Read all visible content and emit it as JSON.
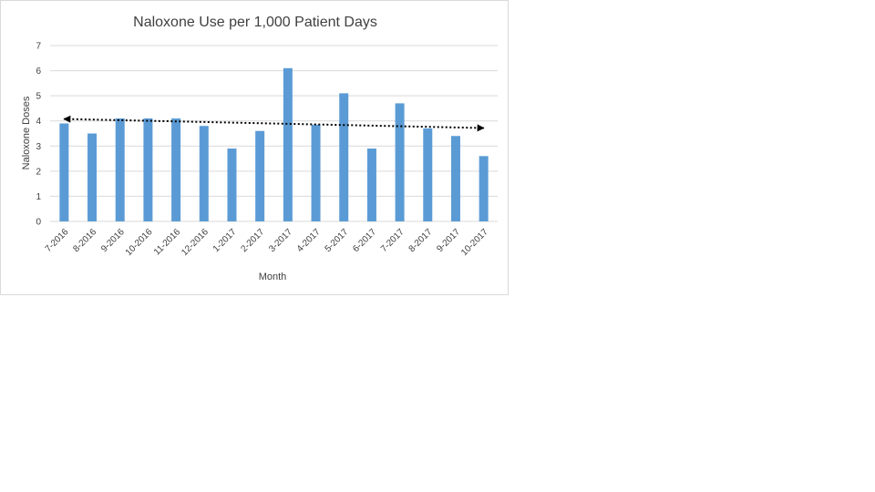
{
  "chart_data": {
    "type": "bar",
    "title": "Naloxone Use per 1,000 Patient Days",
    "xlabel": "Month",
    "ylabel": "Naloxone Doses",
    "categories": [
      "7-2016",
      "8-2016",
      "9-2016",
      "10-2016",
      "11-2016",
      "12-2016",
      "1-2017",
      "2-2017",
      "3-2017",
      "4-2017",
      "5-2017",
      "6-2017",
      "7-2017",
      "8-2017",
      "9-2017",
      "10-2017"
    ],
    "series": [
      {
        "values": [
          3.9,
          3.5,
          4.1,
          4.1,
          4.1,
          3.8,
          2.9,
          3.6,
          6.1,
          3.85,
          5.1,
          2.9,
          4.7,
          3.7,
          3.4,
          2.6
        ],
        "color": "#5b9bd5"
      }
    ],
    "trendline": {
      "type": "linear",
      "style": "dotted",
      "arrowheads": "both",
      "color": "#000000"
    },
    "ylim": [
      0,
      7
    ],
    "yticks": [
      0,
      1,
      2,
      3,
      4,
      5,
      6,
      7
    ],
    "grid": true,
    "gridColor": "#d9d9d9",
    "legend": "none"
  }
}
